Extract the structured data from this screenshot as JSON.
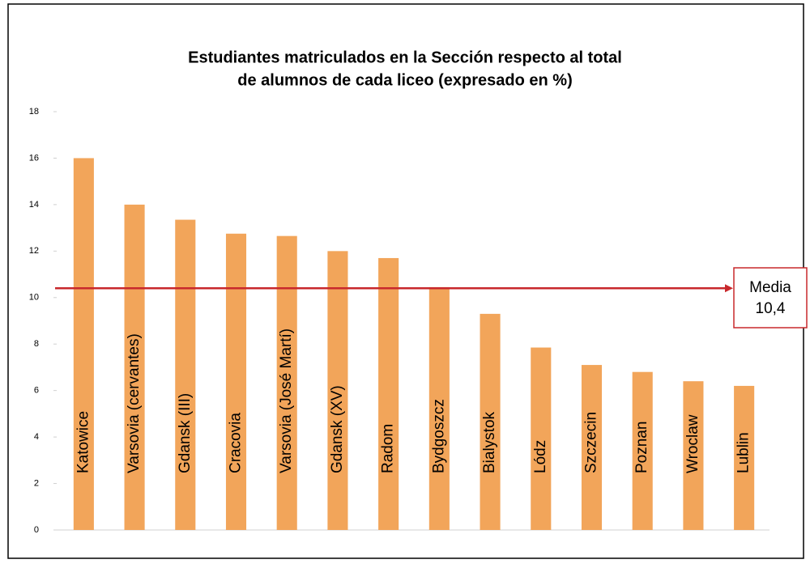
{
  "chart_data": {
    "type": "bar",
    "title": [
      "Estudiantes matriculados en la Sección respecto al total",
      "de alumnos de cada liceo (expresado en %)"
    ],
    "categories": [
      "Katowice",
      "Varsovia (cervantes)",
      "Gdansk (III)",
      "Cracovia",
      "Varsovia (José Martí)",
      "Gdansk (XV)",
      "Radom",
      "Bydgoszcz",
      "Bialystok",
      "Lódz",
      "Szczecin",
      "Poznan",
      "Wroclaw",
      "Lublin"
    ],
    "values": [
      16,
      14,
      13.35,
      12.75,
      12.65,
      12,
      11.7,
      10.45,
      9.3,
      7.85,
      7.1,
      6.8,
      6.4,
      6.2
    ],
    "color": "#f2a55a",
    "ylim": [
      0,
      18
    ],
    "yticks": [
      0,
      2,
      4,
      6,
      8,
      10,
      12,
      14,
      16,
      18
    ],
    "reference_line": {
      "label": "Media",
      "value": 10.4,
      "value_label": "10,4",
      "color": "#c8282c"
    }
  }
}
